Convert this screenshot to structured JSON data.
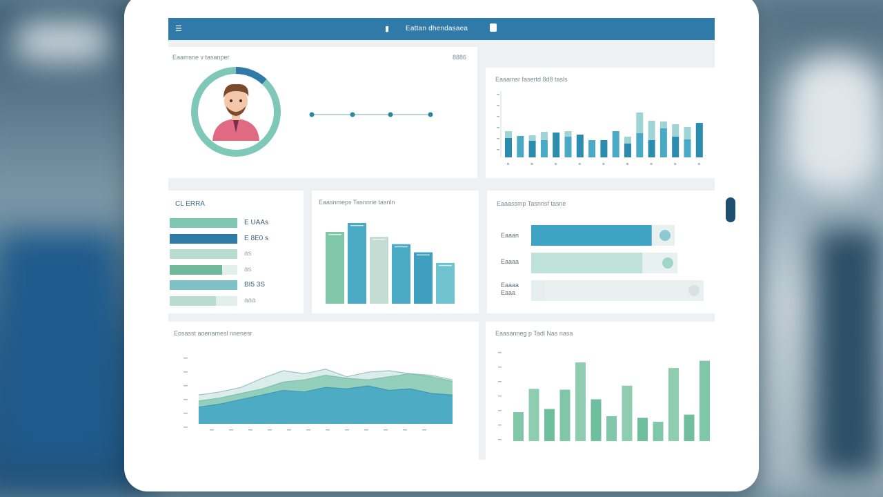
{
  "window": {
    "title": "Eattan dhendasaea",
    "menu_icon": "menu-icon",
    "title_icon": "chart-icon",
    "doc_icon": "document-icon"
  },
  "profile_card": {
    "title": "Eaamsne v tasanper",
    "badge": "8886",
    "progress": 0.12,
    "timeline_points": 4,
    "avatar_icon": "user-avatar-icon"
  },
  "bar_chart_top": {
    "title": "Eaaamsr fasertd 8d8 tasls"
  },
  "stats_card": {
    "title": "CL ERRA",
    "rows": [
      "E UAAs",
      "E 8E0 s",
      "as",
      "as",
      "BI5 3S",
      "aaa"
    ]
  },
  "bar_chart_mid": {
    "title": "Eaasnmeps Tasnnne tasnln"
  },
  "progress_card": {
    "title": "Eaaassmp Tasnnsf tasne",
    "items": [
      {
        "label": "Eaaan",
        "value": 0.84
      },
      {
        "label": "Eaaaa",
        "value": 0.76
      },
      {
        "label": "Eaaaa Eaaa",
        "value": 0.08
      }
    ]
  },
  "area_chart": {
    "title": "Eosasst aoenamesl nnenesr"
  },
  "bar_chart_bottom": {
    "title": "Eaasanneg p Tadl Nas nasa"
  },
  "colors": {
    "primary": "#2f7aa8",
    "teal": "#4aa9c4",
    "mint": "#7fc7a8",
    "pale": "#c3e0d6"
  },
  "chart_data": [
    {
      "type": "bar",
      "title": "Eaaamsr fasertd 8d8 tasls",
      "categories": [
        "1",
        "2",
        "3",
        "4",
        "5",
        "6",
        "7",
        "8",
        "9",
        "10",
        "11",
        "12",
        "13",
        "14",
        "15",
        "16",
        "17"
      ],
      "series": [
        {
          "values": [
            28,
            31,
            24,
            25,
            36,
            30,
            33,
            25,
            25,
            38,
            20,
            35,
            25,
            42,
            30,
            26,
            50
          ]
        },
        {
          "values": [
            10,
            0,
            8,
            12,
            0,
            8,
            0,
            0,
            0,
            0,
            10,
            30,
            28,
            10,
            18,
            18,
            0
          ]
        }
      ],
      "ylim": [
        0,
        100
      ]
    },
    {
      "type": "bar",
      "title": "Eaasnmeps Tasnnne tasnln",
      "categories": [
        "1",
        "2",
        "3",
        "4",
        "5",
        "6"
      ],
      "values": [
        88,
        99,
        82,
        73,
        63,
        50
      ],
      "ylim": [
        0,
        110
      ]
    },
    {
      "type": "area",
      "title": "Eosasst aoenamesl nnenesr",
      "x": [
        0,
        1,
        2,
        3,
        4,
        5,
        6,
        7,
        8,
        9,
        10,
        11,
        12
      ],
      "series": [
        {
          "values": [
            38,
            42,
            48,
            60,
            70,
            66,
            72,
            62,
            68,
            70,
            66,
            64,
            58
          ]
        },
        {
          "values": [
            30,
            34,
            40,
            46,
            55,
            58,
            64,
            60,
            58,
            62,
            66,
            62,
            56
          ]
        },
        {
          "values": [
            22,
            26,
            32,
            38,
            44,
            42,
            48,
            46,
            50,
            44,
            46,
            40,
            38
          ]
        }
      ],
      "ylim": [
        0,
        100
      ]
    },
    {
      "type": "bar",
      "title": "Eaasanneg p Tadl Nas nasa",
      "categories": [
        "1",
        "2",
        "3",
        "4",
        "5",
        "6",
        "7",
        "8",
        "9",
        "10",
        "11",
        "12",
        "13"
      ],
      "values": [
        36,
        65,
        40,
        64,
        98,
        52,
        31,
        69,
        29,
        24,
        91,
        33,
        100
      ],
      "ylim": [
        0,
        110
      ]
    }
  ]
}
